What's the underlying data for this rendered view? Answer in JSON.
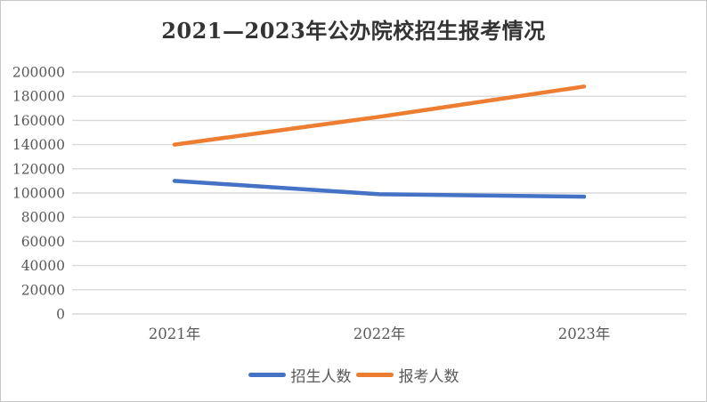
{
  "chart_data": {
    "type": "line",
    "title": "2021—2023年公办院校招生报考情况",
    "categories": [
      "2021年",
      "2022年",
      "2023年"
    ],
    "series": [
      {
        "name": "招生人数",
        "color": "#4472C4",
        "values": [
          110000,
          99000,
          97000
        ]
      },
      {
        "name": "报考人数",
        "color": "#ED7D31",
        "values": [
          140000,
          163000,
          188000
        ]
      }
    ],
    "xlabel": "",
    "ylabel": "",
    "ylim": [
      0,
      200000
    ],
    "ytick_step": 20000,
    "grid": true,
    "legend_position": "bottom",
    "colors": {
      "gridline": "#d9d9d9",
      "axis_label": "#595959",
      "title": "#333333",
      "background": "#ffffff",
      "frame_border": "#c6c6c6"
    }
  }
}
